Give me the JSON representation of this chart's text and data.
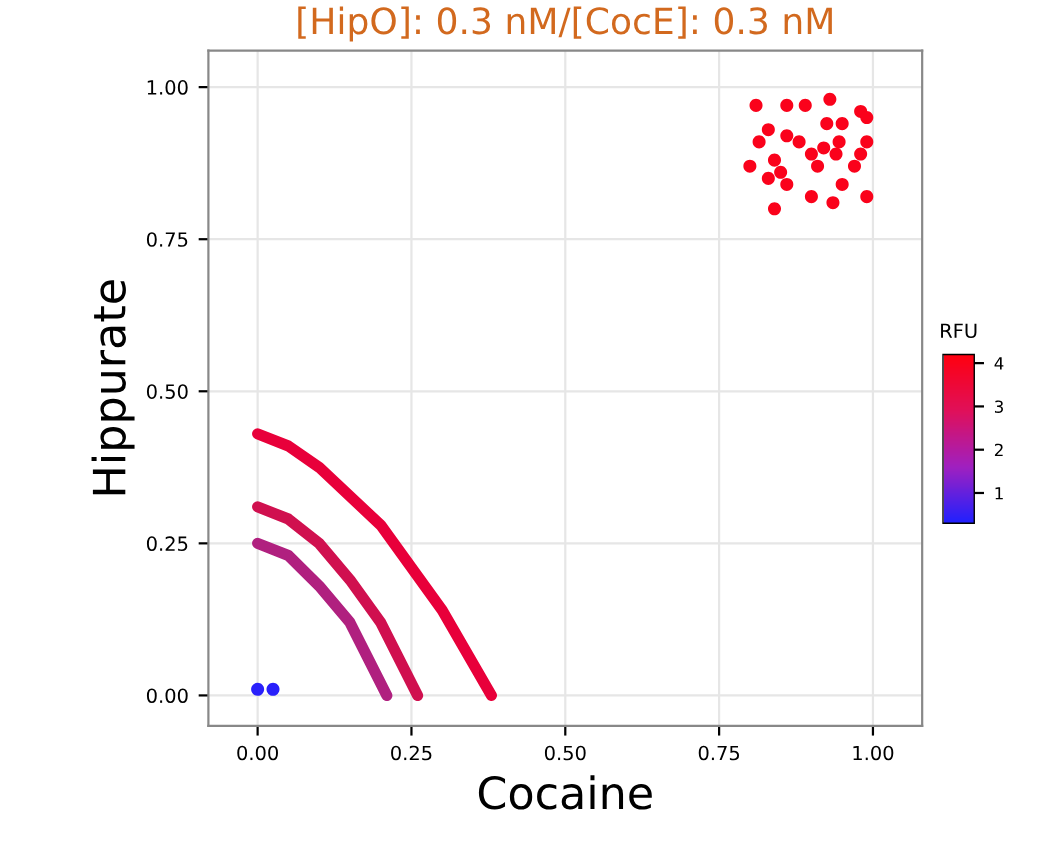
{
  "chart_data": {
    "type": "line",
    "title": "[HipO]: 0.3 nM/[CocE]: 0.3 nM",
    "xlabel": "Cocaine",
    "ylabel": "Hippurate",
    "clabel": "RFU",
    "xlim": [
      -0.08,
      1.08
    ],
    "ylim": [
      -0.05,
      1.06
    ],
    "xticks": [
      {
        "value": 0,
        "label": "0.00"
      },
      {
        "value": 0.25,
        "label": "0.25"
      },
      {
        "value": 0.5,
        "label": "0.50"
      },
      {
        "value": 0.75,
        "label": "0.75"
      },
      {
        "value": 1,
        "label": "1.00"
      }
    ],
    "yticks": [
      {
        "value": 0,
        "label": "0.00"
      },
      {
        "value": 0.25,
        "label": "0.25"
      },
      {
        "value": 0.5,
        "label": "0.50"
      },
      {
        "value": 0.75,
        "label": "0.75"
      },
      {
        "value": 1,
        "label": "1.00"
      }
    ],
    "clim": [
      0.3,
      4.2
    ],
    "cticks": [
      1,
      2,
      3,
      4
    ],
    "grid": true,
    "series": [
      {
        "color": "#e8003a",
        "x": [
          0,
          0.05,
          0.1,
          0.2,
          0.3,
          0.38
        ],
        "values": [
          0.43,
          0.41,
          0.375,
          0.28,
          0.14,
          0.0
        ]
      },
      {
        "color": "#d0104f",
        "x": [
          0,
          0.05,
          0.1,
          0.15,
          0.2,
          0.26
        ],
        "values": [
          0.31,
          0.29,
          0.25,
          0.19,
          0.12,
          0.0
        ]
      },
      {
        "color": "#b0207f",
        "x": [
          0,
          0.05,
          0.1,
          0.15,
          0.21
        ],
        "values": [
          0.25,
          0.23,
          0.18,
          0.12,
          0.0
        ]
      },
      {
        "type": "scatter",
        "x": [
          0.0,
          0.025
        ],
        "values": [
          0.01,
          0.01
        ],
        "cvalues": [
          0.4,
          0.4
        ]
      },
      {
        "type": "scatter",
        "x": [
          0.81,
          0.86,
          0.89,
          0.93,
          0.98,
          0.99,
          0.83,
          0.86,
          0.925,
          0.95,
          0.815,
          0.88,
          0.92,
          0.945,
          0.99,
          0.84,
          0.9,
          0.94,
          0.98,
          0.8,
          0.85,
          0.91,
          0.97,
          0.83,
          0.86,
          0.95,
          0.9,
          0.935,
          0.99,
          0.84
        ],
        "values": [
          0.97,
          0.97,
          0.97,
          0.98,
          0.96,
          0.95,
          0.93,
          0.92,
          0.94,
          0.94,
          0.91,
          0.91,
          0.9,
          0.91,
          0.91,
          0.88,
          0.89,
          0.89,
          0.89,
          0.87,
          0.86,
          0.87,
          0.87,
          0.85,
          0.84,
          0.84,
          0.82,
          0.81,
          0.82,
          0.8
        ],
        "cvalues": [
          4,
          4,
          4,
          4,
          4,
          4,
          4,
          4,
          4,
          4,
          4,
          4,
          4,
          4,
          4,
          4,
          4,
          4,
          4,
          4,
          4,
          4,
          4,
          4,
          4,
          4,
          4,
          4,
          4,
          4
        ]
      }
    ]
  }
}
